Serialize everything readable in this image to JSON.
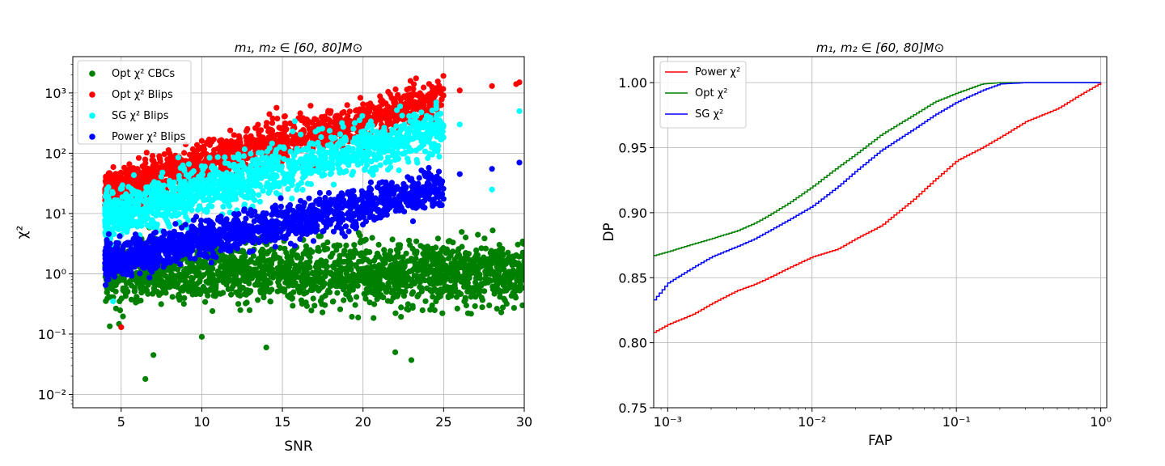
{
  "chart_data": [
    {
      "type": "scatter",
      "title": "m₁, m₂ ∈ [60, 80]M⊙",
      "xlabel": "SNR",
      "ylabel": "χ²",
      "xlim": [
        2,
        30
      ],
      "ylim": [
        0.006,
        4000
      ],
      "yscale": "log",
      "grid": true,
      "legend_position": "top-left",
      "xticks": [
        5,
        10,
        15,
        20,
        25,
        30
      ],
      "yticks": [
        {
          "value": 0.01,
          "label": "10⁻²"
        },
        {
          "value": 0.1,
          "label": "10⁻¹"
        },
        {
          "value": 1,
          "label": "10⁰"
        },
        {
          "value": 10,
          "label": "10¹"
        },
        {
          "value": 100,
          "label": "10²"
        },
        {
          "value": 1000,
          "label": "10³"
        }
      ],
      "series": [
        {
          "name": "Opt χ² CBCs",
          "color": "#008000",
          "points": [
            [
              4,
              1.3
            ],
            [
              5,
              0.9
            ],
            [
              6,
              0.8
            ],
            [
              7,
              1.0
            ],
            [
              8,
              0.6
            ],
            [
              9,
              1.2
            ],
            [
              10,
              0.9
            ],
            [
              11,
              1.1
            ],
            [
              12,
              0.7
            ],
            [
              13,
              1.0
            ],
            [
              14,
              1.3
            ],
            [
              15,
              0.9
            ],
            [
              16,
              1.1
            ],
            [
              17,
              0.8
            ],
            [
              18,
              1.0
            ],
            [
              19,
              1.2
            ],
            [
              20,
              0.9
            ],
            [
              21,
              1.0
            ],
            [
              22,
              1.1
            ],
            [
              23,
              0.8
            ],
            [
              24,
              1.0
            ],
            [
              25,
              1.2
            ],
            [
              26,
              0.9
            ],
            [
              27,
              1.0
            ],
            [
              28,
              1.1
            ],
            [
              29,
              0.9
            ],
            [
              30,
              1.6
            ],
            [
              6.5,
              0.018
            ],
            [
              23,
              0.037
            ],
            [
              7,
              0.045
            ],
            [
              10,
              0.09
            ],
            [
              14,
              0.06
            ],
            [
              22,
              0.05
            ]
          ]
        },
        {
          "name": "Opt χ² Blips",
          "color": "#ff0000",
          "points": [
            [
              4,
              25
            ],
            [
              5,
              40
            ],
            [
              6,
              55
            ],
            [
              7,
              75
            ],
            [
              8,
              100
            ],
            [
              9,
              140
            ],
            [
              10,
              160
            ],
            [
              12,
              200
            ],
            [
              14,
              280
            ],
            [
              16,
              380
            ],
            [
              18,
              500
            ],
            [
              20,
              650
            ],
            [
              22,
              800
            ],
            [
              24,
              900
            ],
            [
              26,
              1100
            ],
            [
              28,
              1300
            ],
            [
              29.7,
              1500
            ],
            [
              29.5,
              1400
            ],
            [
              5,
              0.13
            ]
          ]
        },
        {
          "name": "SG χ² Blips",
          "color": "#00ffff",
          "points": [
            [
              4,
              10
            ],
            [
              5,
              15
            ],
            [
              6,
              20
            ],
            [
              7,
              28
            ],
            [
              8,
              35
            ],
            [
              10,
              45
            ],
            [
              12,
              65
            ],
            [
              14,
              85
            ],
            [
              16,
              110
            ],
            [
              18,
              140
            ],
            [
              20,
              180
            ],
            [
              22,
              220
            ],
            [
              24,
              260
            ],
            [
              26,
              300
            ],
            [
              28,
              25
            ],
            [
              29.7,
              500
            ],
            [
              4.5,
              0.35
            ]
          ]
        },
        {
          "name": "Power χ² Blips",
          "color": "#0000ff",
          "points": [
            [
              4,
              1.5
            ],
            [
              5,
              2.0
            ],
            [
              6,
              2.5
            ],
            [
              7,
              3.2
            ],
            [
              8,
              4.0
            ],
            [
              10,
              5.5
            ],
            [
              12,
              7.5
            ],
            [
              14,
              10
            ],
            [
              16,
              13
            ],
            [
              18,
              17
            ],
            [
              20,
              22
            ],
            [
              22,
              27
            ],
            [
              24,
              32
            ],
            [
              26,
              45
            ],
            [
              28,
              55
            ],
            [
              29.7,
              70
            ],
            [
              4.2,
              0.8
            ]
          ]
        }
      ]
    },
    {
      "type": "line",
      "title": "m₁, m₂ ∈ [60, 80]M⊙",
      "xlabel": "FAP",
      "ylabel": "DP",
      "xscale": "log",
      "xlim": [
        0.0008,
        1.1
      ],
      "ylim": [
        0.75,
        1.02
      ],
      "grid": true,
      "legend_position": "top-left",
      "xticks": [
        {
          "value": 0.001,
          "label": "10⁻³"
        },
        {
          "value": 0.01,
          "label": "10⁻²"
        },
        {
          "value": 0.1,
          "label": "10⁻¹"
        },
        {
          "value": 1,
          "label": "10⁰"
        }
      ],
      "yticks": [
        "0.75",
        "0.80",
        "0.85",
        "0.90",
        "0.95",
        "1.00"
      ],
      "series": [
        {
          "name": "Power χ²",
          "color": "#ff0000",
          "x": [
            0.0008,
            0.001,
            0.0015,
            0.002,
            0.003,
            0.004,
            0.005,
            0.007,
            0.01,
            0.015,
            0.02,
            0.03,
            0.05,
            0.07,
            0.1,
            0.15,
            0.2,
            0.3,
            0.5,
            0.7,
            1.0
          ],
          "y": [
            0.808,
            0.814,
            0.822,
            0.83,
            0.84,
            0.845,
            0.85,
            0.858,
            0.866,
            0.872,
            0.88,
            0.89,
            0.91,
            0.925,
            0.94,
            0.95,
            0.958,
            0.97,
            0.98,
            0.99,
            1.0
          ]
        },
        {
          "name": "Opt χ²",
          "color": "#008000",
          "x": [
            0.0008,
            0.001,
            0.0015,
            0.002,
            0.003,
            0.004,
            0.005,
            0.007,
            0.01,
            0.015,
            0.02,
            0.03,
            0.05,
            0.07,
            0.1,
            0.15,
            0.2,
            0.3,
            0.5,
            0.7,
            1.0
          ],
          "y": [
            0.867,
            0.87,
            0.876,
            0.88,
            0.886,
            0.892,
            0.898,
            0.908,
            0.92,
            0.935,
            0.945,
            0.96,
            0.975,
            0.985,
            0.992,
            0.999,
            1.0,
            1.0,
            1.0,
            1.0,
            1.0
          ]
        },
        {
          "name": "SG χ²",
          "color": "#0000ff",
          "x": [
            0.0008,
            0.001,
            0.0015,
            0.002,
            0.003,
            0.004,
            0.005,
            0.007,
            0.01,
            0.015,
            0.02,
            0.03,
            0.05,
            0.07,
            0.1,
            0.15,
            0.2,
            0.3,
            0.5,
            0.7,
            1.0
          ],
          "y": [
            0.833,
            0.846,
            0.858,
            0.866,
            0.874,
            0.88,
            0.886,
            0.895,
            0.905,
            0.92,
            0.932,
            0.948,
            0.964,
            0.975,
            0.985,
            0.994,
            0.999,
            1.0,
            1.0,
            1.0,
            1.0
          ]
        }
      ]
    }
  ]
}
